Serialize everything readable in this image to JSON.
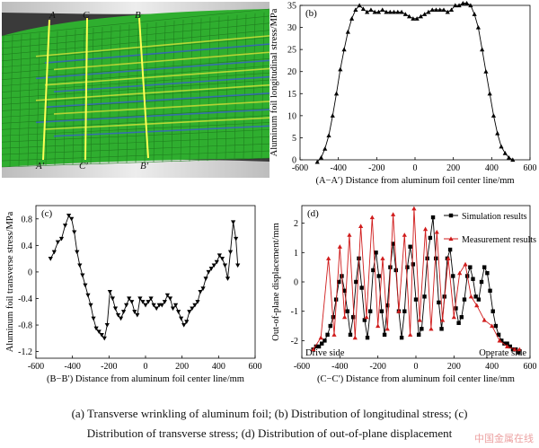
{
  "panel_a": {
    "labels_top": [
      "A",
      "C",
      "B"
    ],
    "labels_bottom": [
      "A′",
      "C′",
      "B′"
    ],
    "colors": {
      "mesh": "#2fae2f",
      "band_yellow": "#e6e63a",
      "band_blue": "#3a5bd6",
      "background": "#2a2a2a",
      "roll": "#d9d9d9"
    }
  },
  "captions": {
    "line1": "(a) Transverse wrinkling of aluminum foil; (b) Distribution of longitudinal stress; (c)",
    "line2": "Distribution of transverse stress; (d) Distribution of out-of-plane displacement"
  },
  "watermark": "中国金属在线",
  "chart_data": [
    {
      "id": "b",
      "type": "line",
      "panel_label": "(b)",
      "ylabel": "Aluminum foil longitudinal stress/MPa",
      "xlabel": "(A−A′) Distance from aluminum foil center line/mm",
      "xlim": [
        -600,
        600
      ],
      "ylim": [
        0,
        35
      ],
      "xticks": [
        -600,
        -400,
        -200,
        0,
        200,
        400,
        600
      ],
      "yticks": [
        0,
        5,
        10,
        15,
        20,
        25,
        30,
        35
      ],
      "marker": "triangle-up",
      "series": [
        {
          "color": "#000000",
          "x": [
            -510,
            -490,
            -470,
            -450,
            -430,
            -410,
            -390,
            -370,
            -350,
            -330,
            -310,
            -290,
            -270,
            -250,
            -230,
            -210,
            -190,
            -170,
            -150,
            -130,
            -110,
            -90,
            -70,
            -50,
            -30,
            -10,
            10,
            30,
            50,
            70,
            90,
            110,
            130,
            150,
            170,
            190,
            210,
            230,
            250,
            270,
            290,
            310,
            330,
            350,
            370,
            390,
            410,
            430,
            450,
            470,
            490,
            510
          ],
          "y": [
            -0.5,
            0.5,
            2.5,
            5.5,
            10,
            15,
            20.5,
            25,
            29,
            32,
            34,
            35,
            34.2,
            33.5,
            34,
            33.5,
            33.5,
            34,
            33.5,
            33.5,
            33.5,
            33.5,
            33.5,
            33,
            32.5,
            32,
            32,
            32.5,
            33,
            33.5,
            34,
            34,
            34,
            34,
            33.5,
            34,
            35,
            35,
            35.5,
            35.5,
            35,
            33,
            30,
            25,
            20,
            15,
            10,
            6,
            3,
            1.5,
            0.5,
            0
          ]
        }
      ]
    },
    {
      "id": "c",
      "type": "line",
      "panel_label": "(c)",
      "ylabel": "Aluminum foil transverse stress/MPa",
      "xlabel": "(B−B′) Distance from aluminum foil center line/mm",
      "xlim": [
        -600,
        600
      ],
      "ylim": [
        -1.3,
        1.0
      ],
      "xticks": [
        -600,
        -400,
        -200,
        0,
        200,
        400,
        600
      ],
      "yticks": [
        -1.2,
        -0.8,
        -0.4,
        0,
        0.4,
        0.8
      ],
      "marker": "triangle-down",
      "series": [
        {
          "color": "#000000",
          "x": [
            -520,
            -500,
            -480,
            -460,
            -440,
            -420,
            -405,
            -390,
            -375,
            -360,
            -345,
            -330,
            -315,
            -300,
            -285,
            -270,
            -255,
            -240,
            -225,
            -210,
            -195,
            -180,
            -165,
            -150,
            -135,
            -120,
            -105,
            -90,
            -75,
            -60,
            -45,
            -30,
            -15,
            0,
            15,
            30,
            45,
            60,
            75,
            90,
            105,
            120,
            135,
            150,
            165,
            180,
            195,
            210,
            225,
            240,
            255,
            270,
            285,
            300,
            315,
            330,
            345,
            360,
            375,
            390,
            405,
            420,
            435,
            450,
            465,
            480,
            495,
            505
          ],
          "y": [
            0.2,
            0.3,
            0.45,
            0.5,
            0.7,
            0.85,
            0.8,
            0.6,
            0.3,
            0.1,
            -0.05,
            -0.2,
            -0.35,
            -0.5,
            -0.7,
            -0.85,
            -0.9,
            -0.95,
            -1.0,
            -0.8,
            -0.3,
            -0.4,
            -0.55,
            -0.65,
            -0.7,
            -0.6,
            -0.5,
            -0.4,
            -0.45,
            -0.6,
            -0.65,
            -0.4,
            -0.45,
            -0.5,
            -0.45,
            -0.4,
            -0.5,
            -0.55,
            -0.5,
            -0.5,
            -0.45,
            -0.35,
            -0.4,
            -0.55,
            -0.5,
            -0.6,
            -0.7,
            -0.8,
            -0.75,
            -0.6,
            -0.55,
            -0.5,
            -0.45,
            -0.3,
            -0.25,
            -0.1,
            0.0,
            0.05,
            0.1,
            0.15,
            0.25,
            0.2,
            0.1,
            -0.1,
            0.3,
            0.75,
            0.5,
            0.1
          ]
        }
      ]
    },
    {
      "id": "d",
      "type": "line",
      "panel_label": "(d)",
      "ylabel": "Out-of-plane displacement/mm",
      "xlabel": "(C−C′) Distance from aluminum foil center line/mm",
      "xlim": [
        -600,
        600
      ],
      "ylim": [
        -2.6,
        2.6
      ],
      "xticks": [
        -600,
        -400,
        -200,
        0,
        200,
        400,
        600
      ],
      "yticks": [
        -2,
        -1,
        0,
        1,
        2
      ],
      "annotations": [
        "Drive side",
        "Operate side"
      ],
      "legend_position": "top-right",
      "series": [
        {
          "name": "Simulation results",
          "color": "#000000",
          "marker": "square",
          "x": [
            -540,
            -525,
            -510,
            -495,
            -480,
            -465,
            -450,
            -435,
            -420,
            -405,
            -390,
            -375,
            -360,
            -345,
            -330,
            -315,
            -300,
            -285,
            -270,
            -255,
            -240,
            -225,
            -210,
            -195,
            -180,
            -165,
            -150,
            -135,
            -120,
            -105,
            -90,
            -75,
            -60,
            -45,
            -30,
            -15,
            0,
            15,
            30,
            45,
            60,
            75,
            90,
            105,
            120,
            135,
            150,
            165,
            180,
            195,
            210,
            225,
            240,
            255,
            270,
            285,
            300,
            315,
            330,
            345,
            360,
            375,
            390,
            405,
            420,
            435,
            450,
            465,
            480,
            495,
            510,
            525,
            540
          ],
          "y": [
            -2.3,
            -2.2,
            -2.2,
            -2.1,
            -2.0,
            -1.8,
            -1.5,
            -1.2,
            -0.6,
            0.0,
            0.2,
            -0.3,
            -1.0,
            -1.8,
            -1.2,
            0.0,
            0.8,
            -0.2,
            -1.3,
            -1.9,
            -1.0,
            0.4,
            1.0,
            0.2,
            -1.0,
            -1.8,
            -0.8,
            0.5,
            1.3,
            0.4,
            -1.0,
            -1.9,
            -1.0,
            0.5,
            1.2,
            0.6,
            -0.6,
            -1.8,
            -1.6,
            -0.5,
            0.8,
            1.5,
            2.2,
            0.8,
            -0.7,
            -1.6,
            -0.5,
            0.8,
            1.1,
            0.2,
            -0.9,
            -1.4,
            -1.2,
            -0.6,
            0.2,
            0.5,
            0.1,
            -0.5,
            -0.6,
            0.0,
            0.5,
            0.3,
            -0.3,
            -1.0,
            -1.5,
            -1.8,
            -2.0,
            -2.1,
            -2.1,
            -2.2,
            -2.3,
            -2.3,
            -2.4
          ]
        },
        {
          "name": "Measurement results",
          "color": "#d01c1c",
          "marker": "triangle-up",
          "x": [
            -540,
            -500,
            -460,
            -430,
            -400,
            -375,
            -350,
            -320,
            -290,
            -260,
            -230,
            -200,
            -175,
            -150,
            -120,
            -90,
            -60,
            -30,
            -10,
            20,
            50,
            80,
            110,
            140,
            170,
            200,
            230,
            260,
            290,
            320,
            360,
            400,
            440,
            480,
            520,
            545
          ],
          "y": [
            -2.3,
            -1.9,
            0.8,
            -1.8,
            1.2,
            -1.2,
            1.6,
            -1.9,
            1.9,
            -1.2,
            2.2,
            -1.5,
            0.8,
            -1.6,
            2.3,
            -1.0,
            1.6,
            -1.8,
            2.5,
            -1.3,
            1.8,
            -1.6,
            1.7,
            -1.3,
            0.8,
            -1.2,
            0.3,
            0.6,
            -0.5,
            -0.8,
            -1.3,
            -1.5,
            -2.0,
            -2.2,
            -2.3,
            -2.3
          ]
        }
      ]
    }
  ]
}
